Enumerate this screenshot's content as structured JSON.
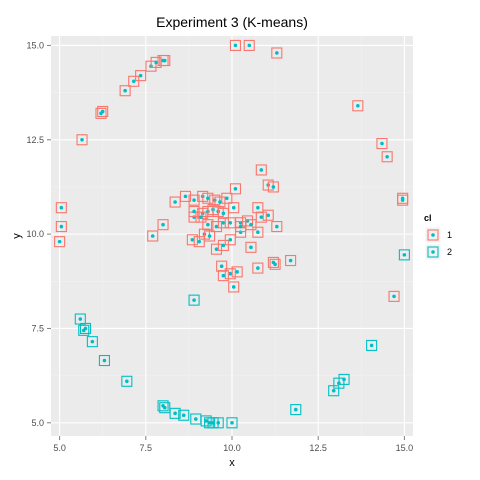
{
  "chart_data": {
    "type": "scatter",
    "title": "Experiment 3 (K-means)",
    "xlabel": "x",
    "ylabel": "y",
    "xlim": [
      4.75,
      15.25
    ],
    "ylim": [
      4.65,
      15.25
    ],
    "xticks": [
      5.0,
      7.5,
      10.0,
      12.5,
      15.0
    ],
    "xtick_labels": [
      "5.0",
      "7.5",
      "10.0",
      "12.5",
      "15.0"
    ],
    "yticks": [
      5.0,
      7.5,
      10.0,
      12.5,
      15.0
    ],
    "ytick_labels": [
      "5.0",
      "7.5",
      "10.0",
      "12.5",
      "15.0"
    ],
    "grid": true,
    "legend": {
      "title": "cl",
      "position": "right",
      "entries": [
        {
          "label": "1",
          "color": "#f8766d"
        },
        {
          "label": "2",
          "color": "#00bfc4"
        }
      ]
    },
    "point_color": "#00bfc4",
    "series": [
      {
        "cluster": "1",
        "box_color": "#f8766d",
        "x": [
          5.05,
          5.05,
          5.0,
          5.65,
          6.2,
          6.25,
          6.9,
          7.15,
          7.35,
          7.65,
          7.8,
          8.0,
          8.05,
          10.1,
          10.5,
          11.3,
          13.65,
          14.35,
          14.5,
          14.95,
          14.95,
          14.7,
          7.7,
          8.0,
          8.35,
          8.65,
          8.9,
          9.15,
          9.3,
          9.5,
          9.65,
          9.85,
          10.1,
          8.9,
          9.15,
          9.3,
          9.45,
          9.6,
          9.75,
          10.05,
          10.25,
          10.45,
          10.75,
          10.85,
          11.05,
          11.2,
          8.85,
          9.05,
          9.2,
          9.35,
          9.55,
          9.75,
          9.95,
          10.25,
          10.55,
          10.75,
          11.05,
          11.3,
          8.9,
          9.1,
          9.3,
          9.55,
          9.75,
          9.95,
          10.25,
          10.55,
          10.85,
          11.2,
          9.7,
          9.95,
          10.15,
          10.75,
          11.25,
          11.7,
          10.05,
          9.75
        ],
        "y": [
          10.7,
          10.2,
          9.8,
          12.5,
          13.2,
          13.25,
          13.8,
          14.05,
          14.2,
          14.45,
          14.55,
          14.6,
          14.6,
          15.0,
          15.0,
          14.8,
          13.4,
          12.4,
          12.05,
          10.95,
          10.9,
          8.35,
          9.95,
          10.25,
          10.85,
          11.0,
          10.9,
          11.0,
          10.95,
          10.9,
          10.85,
          10.95,
          11.2,
          10.45,
          10.55,
          10.6,
          10.65,
          10.6,
          10.55,
          10.7,
          10.3,
          10.35,
          10.7,
          11.7,
          11.3,
          11.25,
          9.85,
          9.8,
          10.0,
          9.95,
          9.6,
          9.7,
          9.85,
          10.05,
          9.65,
          10.05,
          10.5,
          10.2,
          10.6,
          10.45,
          10.25,
          10.2,
          10.3,
          10.3,
          10.2,
          10.25,
          10.45,
          9.25,
          9.15,
          8.95,
          9.0,
          9.1,
          9.2,
          9.3,
          8.6,
          8.9
        ]
      },
      {
        "cluster": "2",
        "box_color": "#00bfc4",
        "x": [
          15.0,
          14.05,
          13.25,
          13.1,
          12.95,
          11.85,
          10.0,
          9.6,
          9.45,
          9.35,
          9.25,
          8.95,
          8.6,
          8.35,
          8.05,
          8.0,
          6.95,
          6.3,
          5.95,
          5.75,
          5.7,
          5.6,
          8.9
        ],
        "y": [
          9.45,
          7.05,
          6.15,
          6.05,
          5.85,
          5.35,
          5.0,
          5.0,
          5.0,
          5.0,
          5.05,
          5.1,
          5.2,
          5.25,
          5.4,
          5.45,
          6.1,
          6.65,
          7.15,
          7.5,
          7.45,
          7.75,
          8.25
        ]
      }
    ]
  }
}
